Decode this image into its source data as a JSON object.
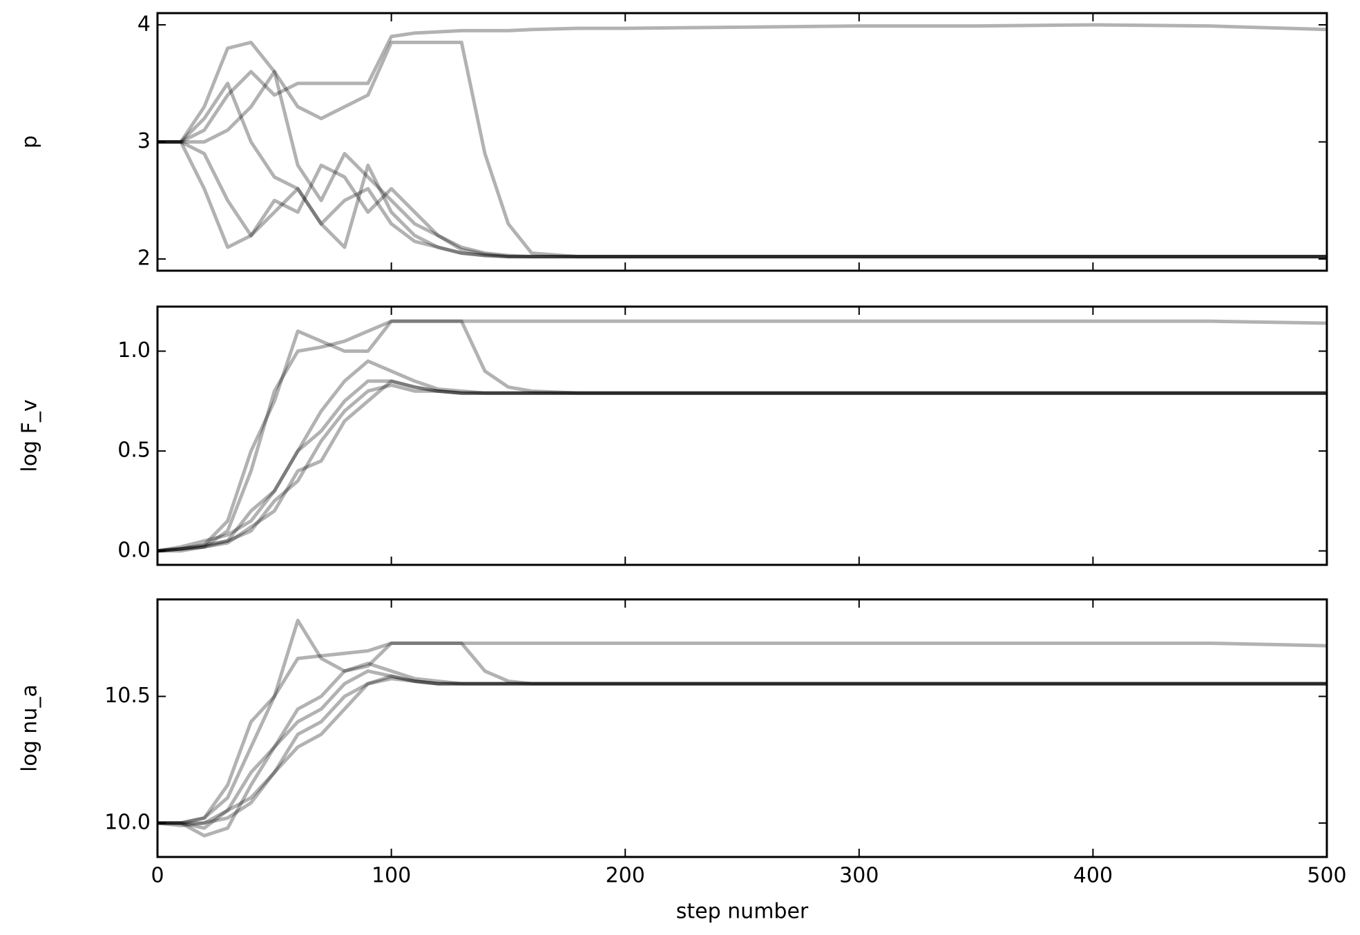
{
  "chart_data": [
    {
      "type": "line",
      "ylabel": "p",
      "color": "#000000",
      "alpha": 0.3,
      "show_xtick_labels": false,
      "x": [
        0,
        10,
        20,
        30,
        40,
        50,
        60,
        70,
        80,
        90,
        100,
        110,
        120,
        130,
        140,
        150,
        160,
        180,
        200,
        250,
        300,
        350,
        400,
        450,
        500
      ],
      "xlim": [
        0,
        500
      ],
      "xticks": [
        0,
        100,
        200,
        300,
        400,
        500
      ],
      "ylim": [
        1.9,
        4.1
      ],
      "yticks": [
        2,
        3,
        4
      ],
      "series": [
        {
          "values": [
            3,
            3,
            3.1,
            3.4,
            3.6,
            3.4,
            3.5,
            3.5,
            3.5,
            3.5,
            3.9,
            3.93,
            3.94,
            3.95,
            3.95,
            3.95,
            3.96,
            3.97,
            3.97,
            3.98,
            3.99,
            3.99,
            4.0,
            3.99,
            3.96
          ]
        },
        {
          "values": [
            3,
            3,
            3.3,
            3.8,
            3.85,
            3.6,
            3.3,
            3.2,
            3.3,
            3.4,
            3.85,
            3.85,
            3.85,
            3.85,
            2.9,
            2.3,
            2.05,
            2.02,
            2.02,
            2.02,
            2.02,
            2.02,
            2.02,
            2.02,
            2.02
          ]
        },
        {
          "values": [
            3,
            3,
            2.9,
            2.5,
            2.2,
            2.4,
            2.6,
            2.3,
            2.5,
            2.6,
            2.3,
            2.15,
            2.1,
            2.05,
            2.03,
            2.02,
            2.02,
            2.02,
            2.02,
            2.02,
            2.02,
            2.02,
            2.02,
            2.02,
            2.02
          ]
        },
        {
          "values": [
            3,
            3,
            3.0,
            3.1,
            3.3,
            3.6,
            2.8,
            2.5,
            2.9,
            2.7,
            2.5,
            2.3,
            2.2,
            2.1,
            2.05,
            2.03,
            2.02,
            2.02,
            2.02,
            2.02,
            2.02,
            2.02,
            2.02,
            2.02,
            2.02
          ]
        },
        {
          "values": [
            3,
            3,
            2.6,
            2.1,
            2.2,
            2.5,
            2.4,
            2.8,
            2.7,
            2.4,
            2.6,
            2.4,
            2.2,
            2.08,
            2.04,
            2.02,
            2.02,
            2.02,
            2.02,
            2.02,
            2.02,
            2.02,
            2.02,
            2.02,
            2.02
          ]
        },
        {
          "values": [
            3,
            3,
            3.2,
            3.5,
            3.0,
            2.7,
            2.6,
            2.3,
            2.1,
            2.8,
            2.4,
            2.2,
            2.1,
            2.05,
            2.03,
            2.02,
            2.02,
            2.02,
            2.02,
            2.02,
            2.02,
            2.02,
            2.02,
            2.02,
            2.02
          ]
        }
      ]
    },
    {
      "type": "line",
      "ylabel": "log F_v",
      "color": "#000000",
      "alpha": 0.3,
      "show_xtick_labels": false,
      "x": [
        0,
        10,
        20,
        30,
        40,
        50,
        60,
        70,
        80,
        90,
        100,
        110,
        120,
        130,
        140,
        150,
        160,
        180,
        200,
        250,
        300,
        350,
        400,
        450,
        500
      ],
      "xlim": [
        0,
        500
      ],
      "xticks": [
        0,
        100,
        200,
        300,
        400,
        500
      ],
      "ylim": [
        -0.07,
        1.223
      ],
      "yticks": [
        {
          "value": 0,
          "label": "0.0"
        },
        0.5,
        {
          "value": 1,
          "label": "1.0"
        }
      ],
      "series": [
        {
          "values": [
            0,
            0.01,
            0.02,
            0.1,
            0.4,
            0.8,
            1.0,
            1.02,
            1.05,
            1.1,
            1.15,
            1.15,
            1.15,
            1.15,
            1.15,
            1.15,
            1.15,
            1.15,
            1.15,
            1.15,
            1.15,
            1.15,
            1.15,
            1.15,
            1.14
          ]
        },
        {
          "values": [
            0,
            0.01,
            0.03,
            0.15,
            0.5,
            0.75,
            1.1,
            1.05,
            1.0,
            1.0,
            1.15,
            1.15,
            1.15,
            1.15,
            0.9,
            0.82,
            0.8,
            0.79,
            0.79,
            0.79,
            0.79,
            0.79,
            0.79,
            0.79,
            0.79
          ]
        },
        {
          "values": [
            0,
            0.01,
            0.02,
            0.05,
            0.2,
            0.3,
            0.5,
            0.6,
            0.75,
            0.85,
            0.85,
            0.82,
            0.8,
            0.79,
            0.79,
            0.79,
            0.79,
            0.79,
            0.79,
            0.79,
            0.79,
            0.79,
            0.79,
            0.79,
            0.79
          ]
        },
        {
          "values": [
            0,
            0.01,
            0.03,
            0.05,
            0.1,
            0.25,
            0.35,
            0.55,
            0.7,
            0.8,
            0.83,
            0.8,
            0.8,
            0.79,
            0.79,
            0.79,
            0.79,
            0.79,
            0.79,
            0.79,
            0.79,
            0.79,
            0.79,
            0.79,
            0.79
          ]
        },
        {
          "values": [
            0,
            0.02,
            0.05,
            0.08,
            0.15,
            0.3,
            0.5,
            0.7,
            0.85,
            0.95,
            0.9,
            0.85,
            0.81,
            0.8,
            0.79,
            0.79,
            0.79,
            0.79,
            0.79,
            0.79,
            0.79,
            0.79,
            0.79,
            0.79,
            0.79
          ]
        },
        {
          "values": [
            0,
            0,
            0.02,
            0.04,
            0.12,
            0.2,
            0.4,
            0.45,
            0.65,
            0.75,
            0.85,
            0.82,
            0.8,
            0.79,
            0.79,
            0.79,
            0.79,
            0.79,
            0.79,
            0.79,
            0.79,
            0.79,
            0.79,
            0.79,
            0.79
          ]
        }
      ]
    },
    {
      "type": "line",
      "ylabel": "log nu_a",
      "xlabel": "step number",
      "color": "#000000",
      "alpha": 0.3,
      "show_xtick_labels": true,
      "x": [
        0,
        10,
        20,
        30,
        40,
        50,
        60,
        70,
        80,
        90,
        100,
        110,
        120,
        130,
        140,
        150,
        160,
        180,
        200,
        250,
        300,
        350,
        400,
        450,
        500
      ],
      "xlim": [
        0,
        500
      ],
      "xticks": [
        0,
        100,
        200,
        300,
        400,
        500
      ],
      "ylim": [
        9.866,
        10.883
      ],
      "yticks": [
        {
          "value": 10,
          "label": "10.0"
        },
        10.5
      ],
      "series": [
        {
          "values": [
            10,
            10,
            10.02,
            10.1,
            10.3,
            10.5,
            10.65,
            10.66,
            10.67,
            10.68,
            10.71,
            10.71,
            10.71,
            10.71,
            10.71,
            10.71,
            10.71,
            10.71,
            10.71,
            10.71,
            10.71,
            10.71,
            10.71,
            10.71,
            10.7
          ]
        },
        {
          "values": [
            10,
            10,
            10.02,
            10.15,
            10.4,
            10.5,
            10.8,
            10.65,
            10.6,
            10.62,
            10.71,
            10.71,
            10.71,
            10.71,
            10.6,
            10.56,
            10.55,
            10.55,
            10.55,
            10.55,
            10.55,
            10.55,
            10.55,
            10.55,
            10.55
          ]
        },
        {
          "values": [
            10,
            10,
            9.98,
            10.05,
            10.2,
            10.3,
            10.4,
            10.45,
            10.55,
            10.6,
            10.58,
            10.56,
            10.55,
            10.55,
            10.55,
            10.55,
            10.55,
            10.55,
            10.55,
            10.55,
            10.55,
            10.55,
            10.55,
            10.55,
            10.55
          ]
        },
        {
          "values": [
            10,
            10,
            10,
            10.05,
            10.1,
            10.2,
            10.3,
            10.35,
            10.45,
            10.55,
            10.58,
            10.56,
            10.55,
            10.55,
            10.55,
            10.55,
            10.55,
            10.55,
            10.55,
            10.55,
            10.55,
            10.55,
            10.55,
            10.55,
            10.55
          ]
        },
        {
          "values": [
            10,
            10,
            9.95,
            9.98,
            10.15,
            10.3,
            10.45,
            10.5,
            10.6,
            10.63,
            10.6,
            10.57,
            10.56,
            10.55,
            10.55,
            10.55,
            10.55,
            10.55,
            10.55,
            10.55,
            10.55,
            10.55,
            10.55,
            10.55,
            10.55
          ]
        },
        {
          "values": [
            10,
            9.99,
            10,
            10.02,
            10.08,
            10.2,
            10.35,
            10.4,
            10.5,
            10.55,
            10.57,
            10.56,
            10.55,
            10.55,
            10.55,
            10.55,
            10.55,
            10.55,
            10.55,
            10.55,
            10.55,
            10.55,
            10.55,
            10.55,
            10.55
          ]
        }
      ]
    }
  ]
}
